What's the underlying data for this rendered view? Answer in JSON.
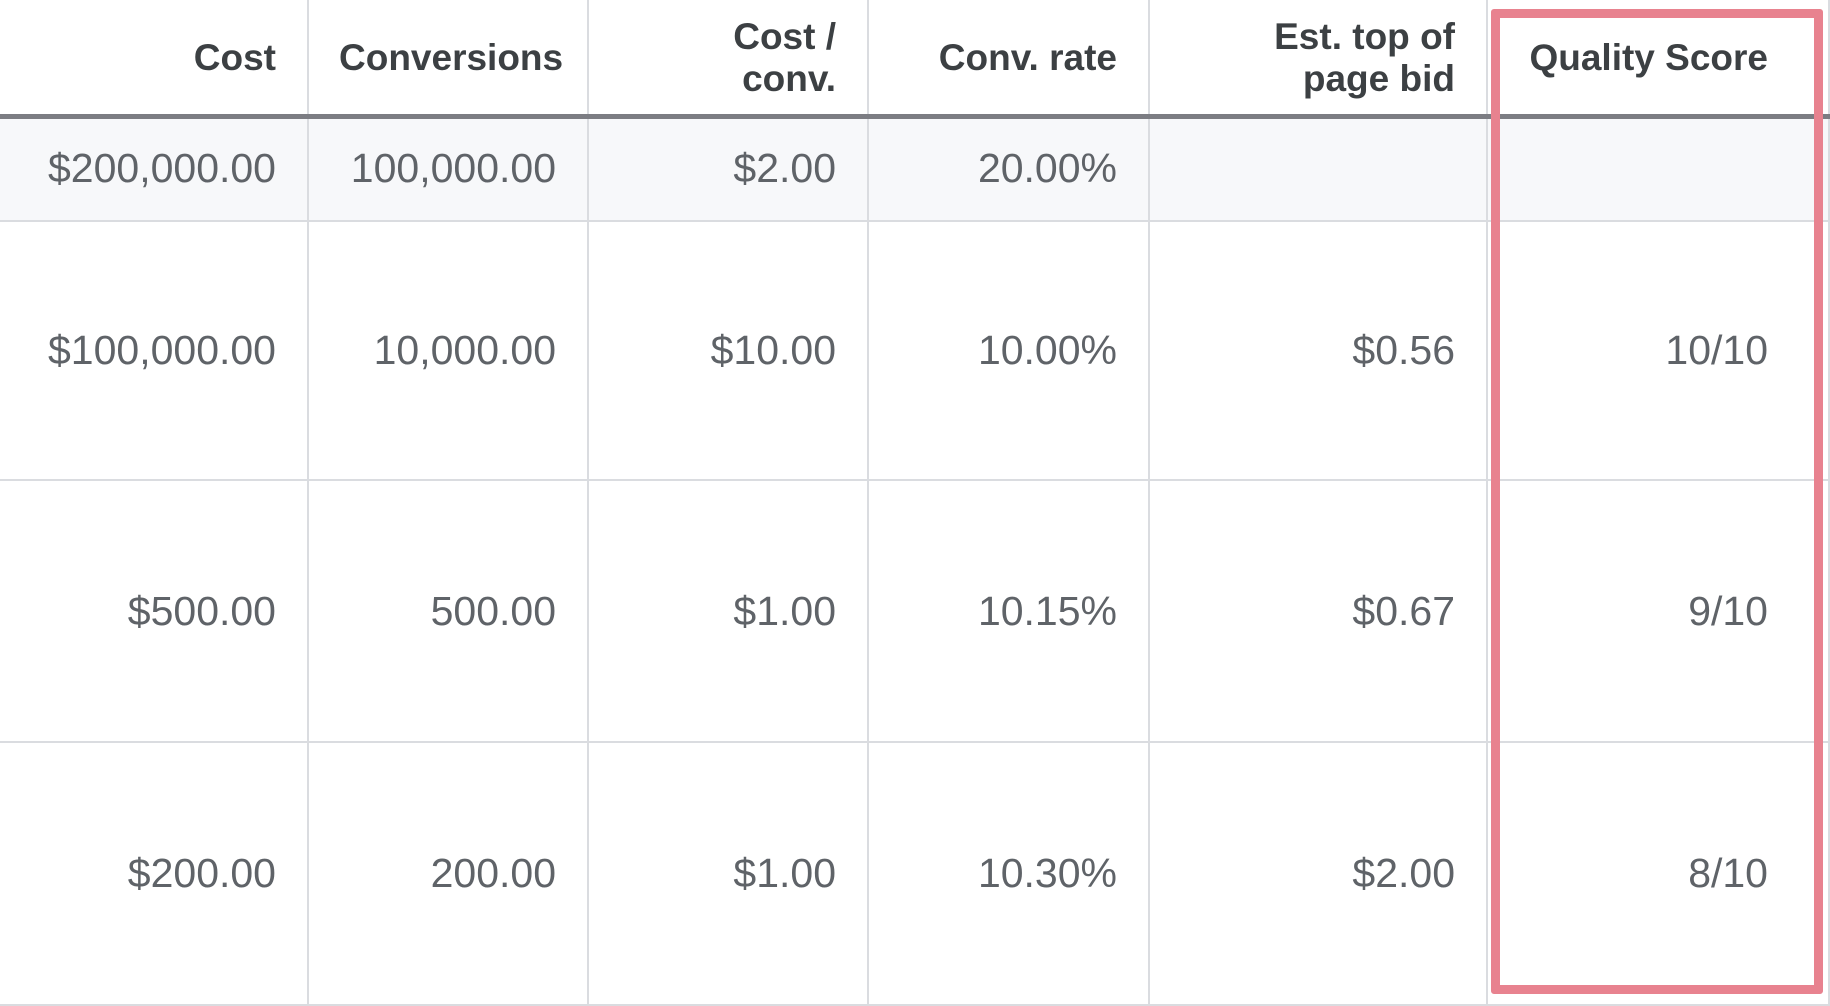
{
  "table": {
    "columns": [
      "Cost",
      "Conversions",
      "Cost / conv.",
      "Conv. rate",
      "Est. top of page bid",
      "Quality Score"
    ],
    "summary": [
      "$200,000.00",
      "100,000.00",
      "$2.00",
      "20.00%"
    ],
    "rows": [
      [
        "$100,000.00",
        "10,000.00",
        "$10.00",
        "10.00%",
        "$0.56",
        "10/10"
      ],
      [
        "$500.00",
        "500.00",
        "$1.00",
        "10.15%",
        "$0.67",
        "9/10"
      ],
      [
        "$200.00",
        "200.00",
        "$1.00",
        "10.30%",
        "$2.00",
        "8/10"
      ]
    ]
  }
}
